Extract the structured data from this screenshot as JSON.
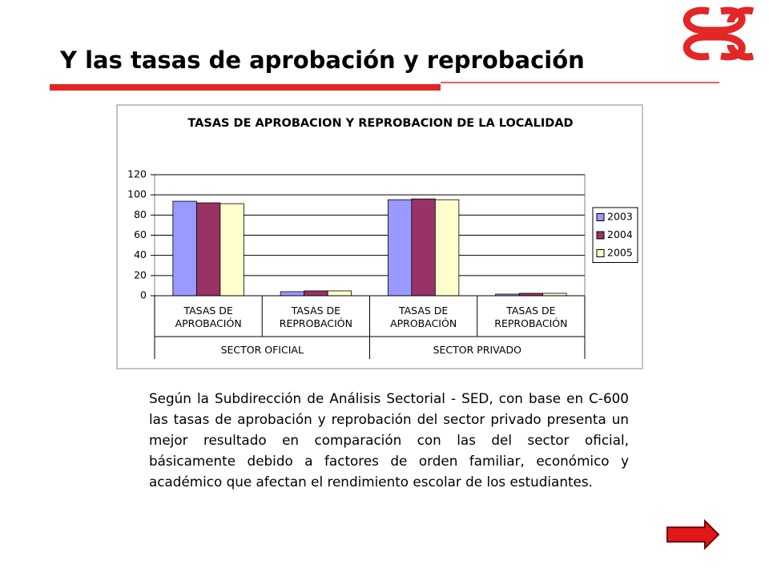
{
  "slide": {
    "title": "Y las tasas de aprobación y reprobación",
    "paragraph": "Según la Subdirección de Análisis Sectorial  - SED, con base en C-600 las tasas de aprobación y reprobación del sector privado presenta un mejor resultado en comparación con las del sector oficial, básicamente debido a factores de orden familiar, económico y académico que afectan el rendimiento escolar de los estudiantes."
  },
  "chart_data": {
    "type": "bar",
    "title": "TASAS DE APROBACION Y REPROBACION DE LA LOCALIDAD",
    "categories": [
      "TASAS DE APROBACIÓN",
      "TASAS DE REPROBACIÓN",
      "TASAS DE APROBACIÓN",
      "TASAS DE REPROBACIÓN"
    ],
    "groups": [
      "SECTOR OFICIAL",
      "SECTOR PRIVADO"
    ],
    "series": [
      {
        "name": "2003",
        "color": "#9999ff",
        "values": [
          93.7,
          4.0,
          95.2,
          1.6
        ]
      },
      {
        "name": "2004",
        "color": "#993366",
        "values": [
          92.1,
          4.8,
          96.0,
          2.4
        ]
      },
      {
        "name": "2005",
        "color": "#ffffcc",
        "values": [
          91.3,
          4.8,
          95.2,
          2.4
        ]
      }
    ],
    "ylim": [
      0,
      120
    ],
    "yticks": [
      0,
      20,
      40,
      60,
      80,
      100,
      120
    ],
    "grid": true,
    "legend": "right"
  }
}
